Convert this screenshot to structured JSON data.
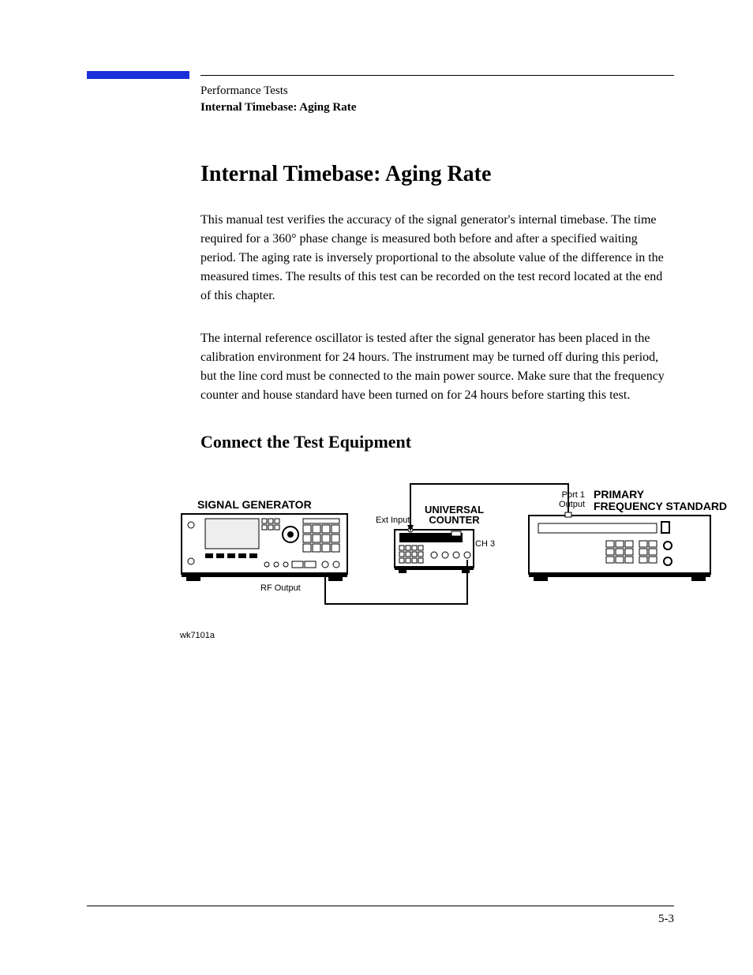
{
  "header": {
    "breadcrumb": "Performance Tests",
    "section": "Internal Timebase: Aging Rate"
  },
  "title": "Internal Timebase: Aging Rate",
  "intro_para": "This manual test verifies the accuracy of the signal generator's internal timebase. The time required for a 360° phase change is measured both before and after a specified waiting period. The aging rate is inversely proportional to the absolute value of the difference in the measured times. The results of this test can be recorded on the test record located at the end of this chapter.",
  "notice_para": "The internal reference oscillator is tested after the signal generator has been placed in the calibration environment for 24 hours. The instrument may be turned off during this period, but the line cord must be connected to the main power source. Make sure that the frequency counter and house standard have been turned on for 24 hours before starting this test.",
  "equip_heading": "Connect the Test Equipment",
  "diagram": {
    "sig_gen_label": "SIGNAL GENERATOR",
    "rf_output_label": "RF Output",
    "ext_input_label": "Ext Input",
    "counter_label": "UNIVERSAL COUNTER",
    "ch3_label": "CH 3",
    "port1_label_line1": "Port 1",
    "port1_label_line2": "Output",
    "freq_std_label_line1": "PRIMARY",
    "freq_std_label_line2": "FREQUENCY STANDARD",
    "ref_code": "wk7101a"
  },
  "footer": {
    "page_number": "5-3"
  }
}
